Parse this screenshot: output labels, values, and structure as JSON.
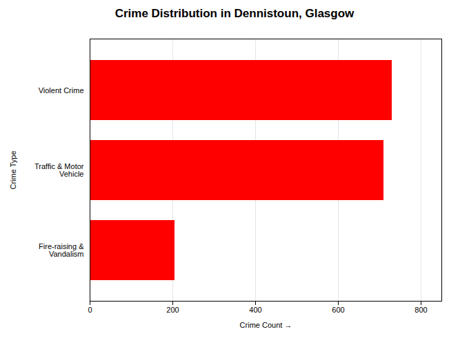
{
  "chart_data": {
    "type": "bar",
    "orientation": "horizontal",
    "title": "Crime Distribution in Dennistoun, Glasgow",
    "categories": [
      "Violent Crime",
      "Traffic & Motor\nVehicle",
      "Fire-raising &\nVandalism"
    ],
    "values": [
      730,
      710,
      205
    ],
    "color": "#ff0000",
    "xlabel": "Crime Count",
    "ylabel": "Crime Type",
    "xlim": [
      0,
      850
    ],
    "xticks": [
      0,
      200,
      400,
      600,
      800
    ],
    "grid": true
  }
}
